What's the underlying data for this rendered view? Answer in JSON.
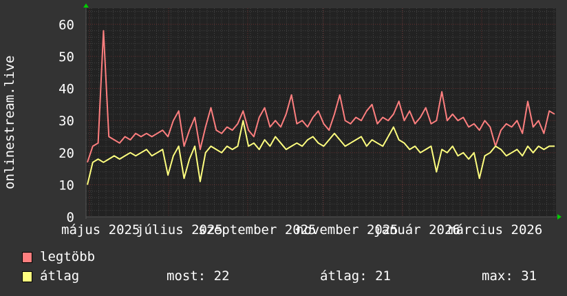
{
  "chart_data": {
    "type": "line",
    "ylabel": "onlinestream.live",
    "ylim": [
      0,
      65
    ],
    "yticks": [
      "0",
      "10",
      "20",
      "30",
      "40",
      "50",
      "60"
    ],
    "xticks": [
      "május 2025",
      "július 2025",
      "szeptember 2025",
      "november 2025",
      "január 2026",
      "március 2026"
    ],
    "grid": true,
    "background": "#222222",
    "series": [
      {
        "name": "legtöbb",
        "color": "#ff7f7f",
        "values": [
          17,
          22,
          23,
          58,
          25,
          24,
          23,
          25,
          24,
          26,
          25,
          26,
          25,
          26,
          27,
          25,
          30,
          33,
          22,
          27,
          31,
          21,
          28,
          34,
          27,
          26,
          28,
          27,
          29,
          33,
          27,
          25,
          31,
          34,
          28,
          30,
          28,
          32,
          38,
          29,
          30,
          28,
          31,
          33,
          29,
          27,
          32,
          38,
          30,
          29,
          31,
          30,
          33,
          35,
          29,
          31,
          30,
          32,
          36,
          30,
          33,
          29,
          31,
          34,
          29,
          30,
          39,
          30,
          32,
          30,
          31,
          28,
          29,
          27,
          30,
          28,
          22,
          27,
          29,
          28,
          30,
          26,
          36,
          28,
          30,
          26,
          33,
          32
        ]
      },
      {
        "name": "átlag",
        "color": "#ffff7f",
        "values": [
          10,
          17,
          18,
          17,
          18,
          19,
          18,
          19,
          20,
          19,
          20,
          21,
          19,
          20,
          21,
          13,
          19,
          22,
          12,
          18,
          22,
          11,
          20,
          22,
          21,
          20,
          22,
          21,
          22,
          30,
          22,
          23,
          21,
          24,
          22,
          25,
          23,
          21,
          22,
          23,
          22,
          24,
          25,
          23,
          22,
          24,
          26,
          24,
          22,
          23,
          24,
          25,
          22,
          24,
          23,
          22,
          25,
          28,
          24,
          23,
          21,
          22,
          20,
          21,
          22,
          14,
          21,
          20,
          22,
          19,
          20,
          18,
          20,
          12,
          19,
          20,
          22,
          21,
          19,
          20,
          21,
          19,
          22,
          20,
          22,
          21,
          22,
          22
        ]
      }
    ]
  },
  "legend": {
    "items": [
      {
        "label": "legtöbb",
        "color": "#ff7f7f"
      },
      {
        "label": "átlag",
        "color": "#ffff7f"
      }
    ],
    "stats": {
      "now": "most: 22",
      "avg": "átlag: 21",
      "max": "max: 31"
    }
  }
}
